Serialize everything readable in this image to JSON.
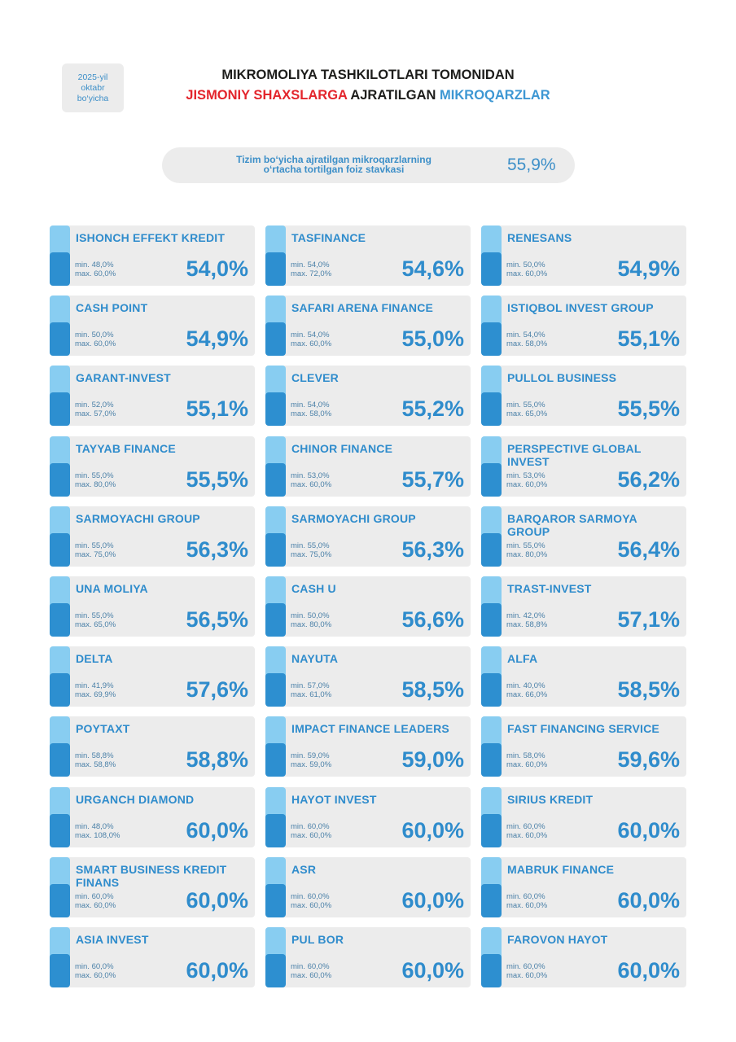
{
  "header": {
    "date": [
      "2025-yil",
      "oktabr",
      "bo‘yicha"
    ],
    "title_line1": "MIKROMOLIYA TASHKILOTLARI TOMONIDAN",
    "title_line2": {
      "red": "JISMONIY SHAXSLARGA",
      "black": "AJRATILGAN",
      "blue": "MIKROQARZLAR"
    }
  },
  "summary": {
    "label": [
      "Tizim bo‘yicha ajratilgan mikroqarzlarning",
      "o‘rtacha tortilgan foiz stavkasi"
    ],
    "value": "55,9%"
  },
  "cards": [
    {
      "name": "ISHONCH EFFEKT KREDIT",
      "min": "min. 48,0%",
      "max": "max. 60,0%",
      "rate": "54,0%"
    },
    {
      "name": "TASFINANCE",
      "min": "min. 54,0%",
      "max": "max. 72,0%",
      "rate": "54,6%"
    },
    {
      "name": "RENESANS",
      "min": "min. 50,0%",
      "max": "max. 60,0%",
      "rate": "54,9%"
    },
    {
      "name": "CASH POINT",
      "min": "min. 50,0%",
      "max": "max. 60,0%",
      "rate": "54,9%"
    },
    {
      "name": "SAFARI ARENA FINANCE",
      "min": "min. 54,0%",
      "max": "max. 60,0%",
      "rate": "55,0%"
    },
    {
      "name": "ISTIQBOL INVEST GROUP",
      "min": "min. 54,0%",
      "max": "max. 58,0%",
      "rate": "55,1%"
    },
    {
      "name": "GARANT-INVEST",
      "min": "min. 52,0%",
      "max": "max. 57,0%",
      "rate": "55,1%"
    },
    {
      "name": "CLEVER",
      "min": "min. 54,0%",
      "max": "max. 58,0%",
      "rate": "55,2%"
    },
    {
      "name": "PULLOL BUSINESS",
      "min": "min. 55,0%",
      "max": "max. 65,0%",
      "rate": "55,5%"
    },
    {
      "name": "TAYYAB FINANCE",
      "min": "min. 55,0%",
      "max": "max. 80,0%",
      "rate": "55,5%"
    },
    {
      "name": "CHINOR FINANCE",
      "min": "min. 53,0%",
      "max": "max. 60,0%",
      "rate": "55,7%"
    },
    {
      "name": "PERSPECTIVE GLOBAL INVEST",
      "min": "min. 53,0%",
      "max": "max. 60,0%",
      "rate": "56,2%"
    },
    {
      "name": "SARMOYACHI GROUP",
      "min": "min. 55,0%",
      "max": "max. 75,0%",
      "rate": "56,3%"
    },
    {
      "name": "SARMOYACHI GROUP",
      "min": "min. 55,0%",
      "max": "max. 75,0%",
      "rate": "56,3%"
    },
    {
      "name": "BARQAROR SARMOYA GROUP",
      "min": "min. 55,0%",
      "max": "max. 80,0%",
      "rate": "56,4%"
    },
    {
      "name": "UNA MOLIYA",
      "min": "min. 55,0%",
      "max": "max. 65,0%",
      "rate": "56,5%"
    },
    {
      "name": "CASH U",
      "min": "min. 50,0%",
      "max": "max. 80,0%",
      "rate": "56,6%"
    },
    {
      "name": "TRAST-INVEST",
      "min": "min. 42,0%",
      "max": "max. 58,8%",
      "rate": "57,1%"
    },
    {
      "name": "DELTA",
      "min": "min. 41,9%",
      "max": "max. 69,9%",
      "rate": "57,6%"
    },
    {
      "name": "NAYUTA",
      "min": "min. 57,0%",
      "max": "max. 61,0%",
      "rate": "58,5%"
    },
    {
      "name": "ALFA",
      "min": "min. 40,0%",
      "max": "max. 66,0%",
      "rate": "58,5%"
    },
    {
      "name": "POYTAXT",
      "min": "min. 58,8%",
      "max": "max. 58,8%",
      "rate": "58,8%"
    },
    {
      "name": "IMPACT FINANCE LEADERS",
      "min": "min. 59,0%",
      "max": "max. 59,0%",
      "rate": "59,0%"
    },
    {
      "name": "FAST FINANCING SERVICE",
      "min": "min. 58,0%",
      "max": "max. 60,0%",
      "rate": "59,6%"
    },
    {
      "name": "URGANCH DIAMOND",
      "min": "min. 48,0%",
      "max": "max. 108,0%",
      "rate": "60,0%"
    },
    {
      "name": "HAYOT INVEST",
      "min": "min. 60,0%",
      "max": "max. 60,0%",
      "rate": "60,0%"
    },
    {
      "name": "SIRIUS KREDIT",
      "min": "min. 60,0%",
      "max": "max. 60,0%",
      "rate": "60,0%"
    },
    {
      "name": "SMART BUSINESS KREDIT FINANS",
      "min": "min. 60,0%",
      "max": "max. 60,0%",
      "rate": "60,0%"
    },
    {
      "name": "ASR",
      "min": "min. 60,0%",
      "max": "max. 60,0%",
      "rate": "60,0%"
    },
    {
      "name": "MABRUK FINANCE",
      "min": "min. 60,0%",
      "max": "max. 60,0%",
      "rate": "60,0%"
    },
    {
      "name": "ASIA INVEST",
      "min": "min. 60,0%",
      "max": "max. 60,0%",
      "rate": "60,0%"
    },
    {
      "name": "PUL BOR",
      "min": "min. 60,0%",
      "max": "max. 60,0%",
      "rate": "60,0%"
    },
    {
      "name": "FAROVON HAYOT",
      "min": "min. 60,0%",
      "max": "max. 60,0%",
      "rate": "60,0%"
    }
  ]
}
